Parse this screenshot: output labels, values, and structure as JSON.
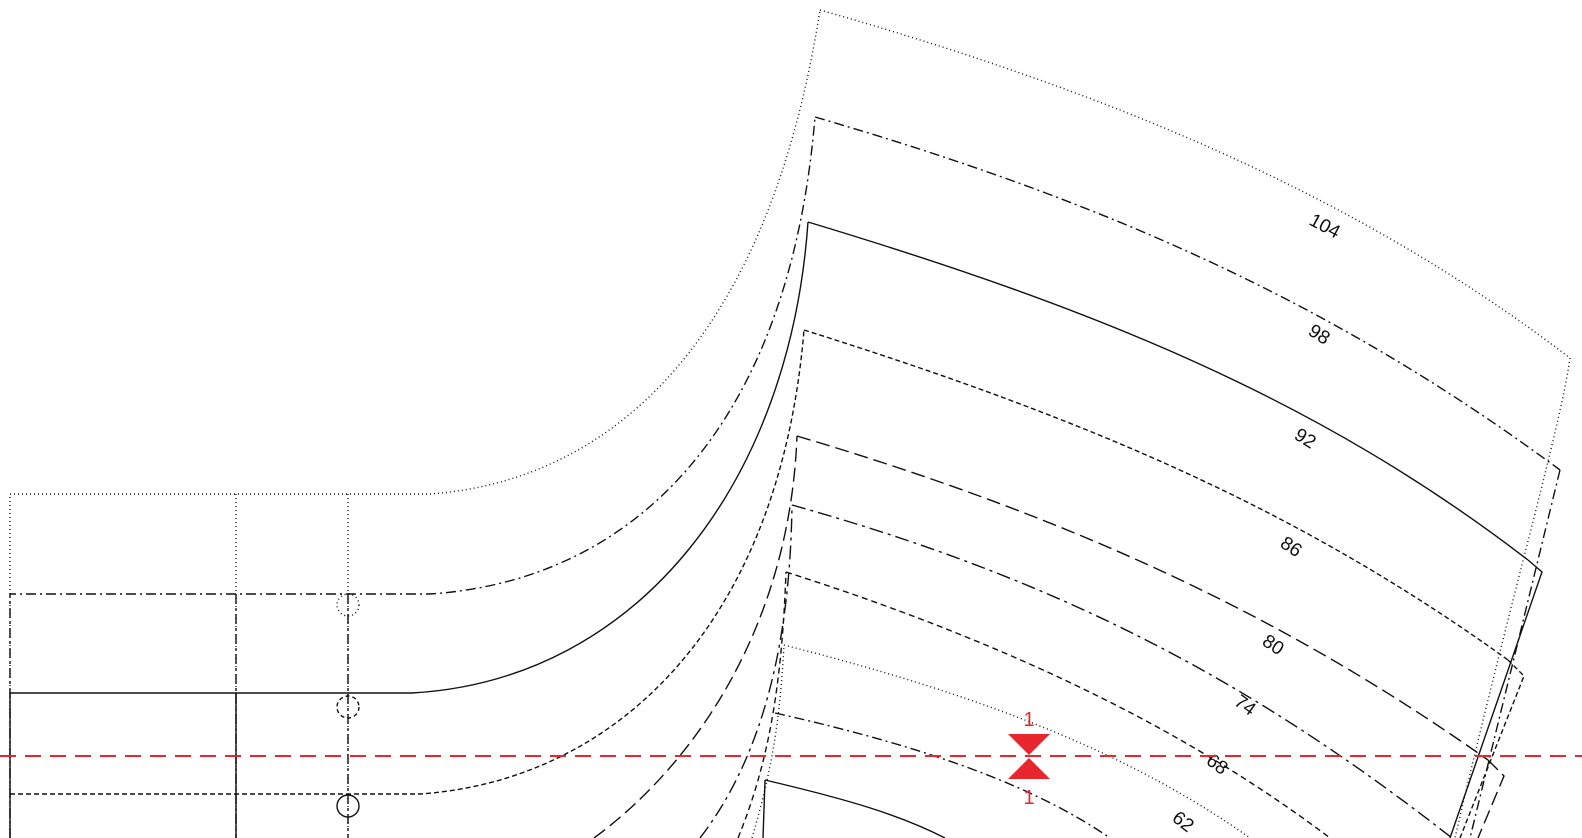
{
  "pattern": {
    "size_labels": [
      "104",
      "98",
      "92",
      "86",
      "80",
      "74",
      "68",
      "62"
    ],
    "marker": {
      "top_label": "1",
      "bottom_label": "1",
      "color": "#e8262e"
    },
    "colors": {
      "line": "#111111",
      "marker": "#e8262e",
      "background": "#ffffff"
    }
  }
}
